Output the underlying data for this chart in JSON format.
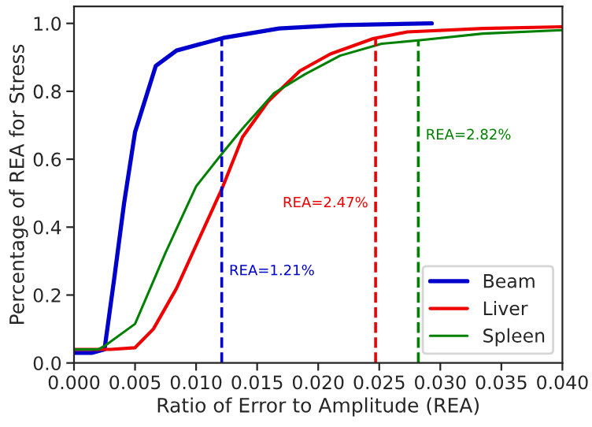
{
  "chart_data": {
    "type": "line",
    "xlabel": "Ratio of Error to Amplitude (REA)",
    "ylabel": "Percentage of REA for Stress",
    "series": [
      {
        "name": "Beam",
        "color": "#0000cc",
        "x": [
          0,
          0.0015,
          0.0025,
          0.0033,
          0.0041,
          0.005,
          0.0067,
          0.0084,
          0.0122,
          0.0168,
          0.0218,
          0.0293
        ],
        "values": [
          0.03,
          0.03,
          0.04,
          0.25,
          0.47,
          0.68,
          0.875,
          0.92,
          0.957,
          0.985,
          0.995,
          1.0
        ]
      },
      {
        "name": "Liver",
        "color": "#ee0000",
        "x": [
          0,
          0.003,
          0.005,
          0.0065,
          0.0084,
          0.0122,
          0.0138,
          0.0159,
          0.0185,
          0.021,
          0.0245,
          0.0273,
          0.0335,
          0.04
        ],
        "values": [
          0.04,
          0.04,
          0.045,
          0.1,
          0.22,
          0.52,
          0.665,
          0.77,
          0.86,
          0.91,
          0.955,
          0.975,
          0.985,
          0.99
        ]
      },
      {
        "name": "Spleen",
        "color": "#008000",
        "x": [
          0,
          0.002,
          0.0025,
          0.005,
          0.0075,
          0.01,
          0.0122,
          0.0138,
          0.0164,
          0.0189,
          0.0218,
          0.0252,
          0.0282,
          0.0335,
          0.04
        ],
        "values": [
          0.04,
          0.04,
          0.05,
          0.115,
          0.325,
          0.52,
          0.62,
          0.69,
          0.795,
          0.85,
          0.905,
          0.94,
          0.95,
          0.97,
          0.98
        ]
      }
    ],
    "ref_lines": [
      {
        "axis": "x",
        "value": 0.0121,
        "label": "REA=1.21%",
        "color": "#0000cc",
        "line_style": "dashed"
      },
      {
        "axis": "x",
        "value": 0.0247,
        "label": "REA=2.47%",
        "color": "#ee0000",
        "line_style": "dashed"
      },
      {
        "axis": "x",
        "value": 0.0282,
        "label": "REA=2.82%",
        "color": "#008000",
        "line_style": "dashed"
      }
    ],
    "xlim": [
      0,
      0.04
    ],
    "ylim": [
      0,
      1.05
    ],
    "xticks": [
      {
        "value": 0,
        "label": "0.000"
      },
      0.005,
      {
        "value": 0.01,
        "label": "0.010"
      },
      0.015,
      {
        "value": 0.02,
        "label": "0.020"
      },
      0.025,
      {
        "value": 0.03,
        "label": "0.030"
      },
      0.035,
      {
        "value": 0.04,
        "label": "0.040"
      }
    ],
    "yticks": [
      {
        "value": 0,
        "label": "0.0"
      },
      0.2,
      0.4,
      0.6,
      0.8,
      {
        "value": 1,
        "label": "1.0"
      }
    ],
    "legend": "lower right",
    "grid": false,
    "marker": "none",
    "line_style": "solid"
  }
}
